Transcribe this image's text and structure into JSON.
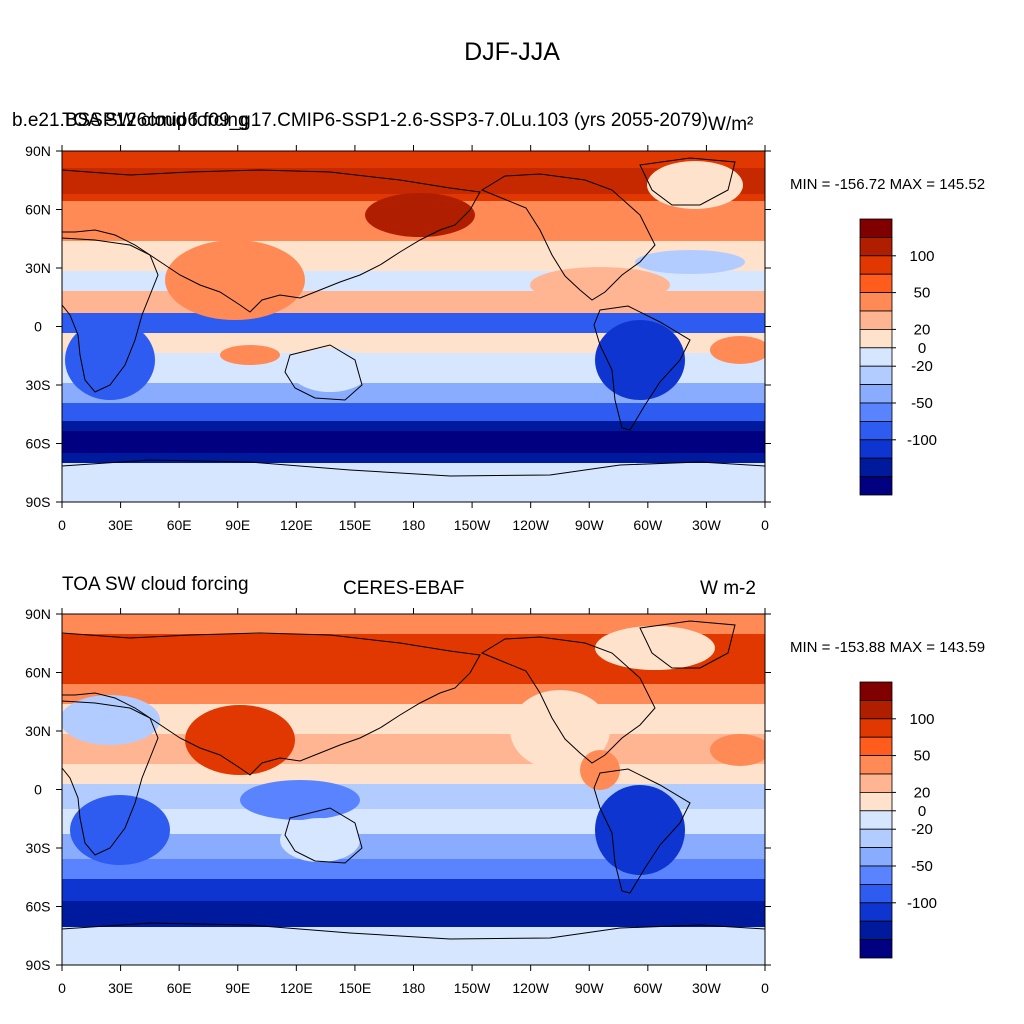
{
  "title": "DJF-JJA",
  "x_ticks": [
    "0",
    "30E",
    "60E",
    "90E",
    "120E",
    "150E",
    "180",
    "150W",
    "120W",
    "90W",
    "60W",
    "30W",
    "0"
  ],
  "y_ticks": [
    "90N",
    "60N",
    "30N",
    "0",
    "30S",
    "60S",
    "90S"
  ],
  "colorbar": {
    "labels": [
      "100",
      "50",
      "20",
      "0",
      "-20",
      "-50",
      "-100"
    ],
    "colors": [
      "#800000",
      "#b01e00",
      "#e03800",
      "#ff5c1e",
      "#ff8a55",
      "#ffb592",
      "#ffe2cc",
      "#d6e6ff",
      "#b3ccff",
      "#8aacff",
      "#5a84ff",
      "#2f5cf0",
      "#0f35d0",
      "#001a9e",
      "#000080"
    ]
  },
  "panels": [
    {
      "left_label": "TOA SW cloud forcing",
      "case_name": "b.e21.BSSP126cmip6.f09_g17.CMIP6-SSP1-2.6-SSP3-7.0Lu.103 (yrs 2055-2079)",
      "units": "W/m²",
      "stats": "MIN = -156.72 MAX = 145.52"
    },
    {
      "left_label": "TOA SW cloud forcing",
      "center_label": "CERES-EBAF",
      "units": "W m-2",
      "stats": "MIN = -153.88 MAX = 143.59"
    }
  ]
}
